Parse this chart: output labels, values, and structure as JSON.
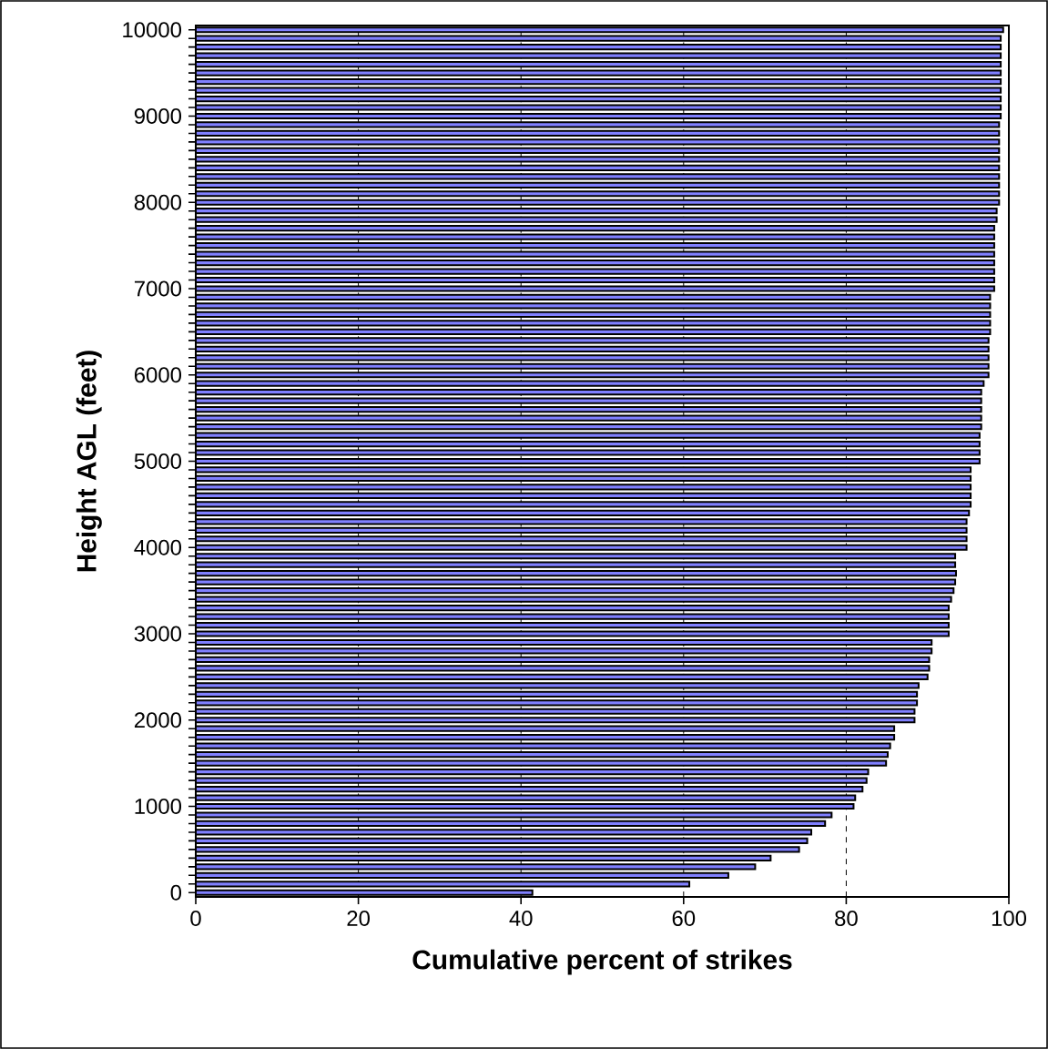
{
  "chart_data": {
    "type": "bar",
    "orientation": "horizontal",
    "xlabel": "Cumulative percent of strikes",
    "ylabel": "Height AGL (feet)",
    "x": [
      0,
      100,
      200,
      300,
      400,
      500,
      600,
      700,
      800,
      900,
      1000,
      1100,
      1200,
      1300,
      1400,
      1500,
      1600,
      1700,
      1800,
      1900,
      2000,
      2100,
      2200,
      2300,
      2400,
      2500,
      2600,
      2700,
      2800,
      2900,
      3000,
      3100,
      3200,
      3300,
      3400,
      3500,
      3600,
      3700,
      3800,
      3900,
      4000,
      4100,
      4200,
      4300,
      4400,
      4500,
      4600,
      4700,
      4800,
      4900,
      5000,
      5100,
      5200,
      5300,
      5400,
      5500,
      5600,
      5700,
      5800,
      5900,
      6000,
      6100,
      6200,
      6300,
      6400,
      6500,
      6600,
      6700,
      6800,
      6900,
      7000,
      7100,
      7200,
      7300,
      7400,
      7500,
      7600,
      7700,
      7800,
      7900,
      8000,
      8100,
      8200,
      8300,
      8400,
      8500,
      8600,
      8700,
      8800,
      8900,
      9000,
      9100,
      9200,
      9300,
      9400,
      9500,
      9600,
      9700,
      9800,
      9900,
      10000
    ],
    "values": [
      41.4,
      60.7,
      65.5,
      68.8,
      70.7,
      74.2,
      75.2,
      75.7,
      77.4,
      78.2,
      80.9,
      81.1,
      82.0,
      82.5,
      82.7,
      84.9,
      85.1,
      85.4,
      85.9,
      85.9,
      88.4,
      88.4,
      88.7,
      88.7,
      88.9,
      90.0,
      90.2,
      90.2,
      90.5,
      90.5,
      92.6,
      92.6,
      92.6,
      92.6,
      92.9,
      93.2,
      93.4,
      93.5,
      93.4,
      93.4,
      94.8,
      94.8,
      94.8,
      94.8,
      95.1,
      95.3,
      95.3,
      95.3,
      95.3,
      95.3,
      96.4,
      96.4,
      96.4,
      96.4,
      96.6,
      96.6,
      96.6,
      96.6,
      96.6,
      96.9,
      97.5,
      97.5,
      97.5,
      97.5,
      97.5,
      97.7,
      97.7,
      97.7,
      97.7,
      97.7,
      98.2,
      98.2,
      98.2,
      98.2,
      98.2,
      98.2,
      98.2,
      98.2,
      98.5,
      98.5,
      98.8,
      98.8,
      98.8,
      98.8,
      98.8,
      98.8,
      98.8,
      98.8,
      98.8,
      98.8,
      99.0,
      99.0,
      99.0,
      99.0,
      99.0,
      99.0,
      99.0,
      99.0,
      99.0,
      99.0,
      99.3
    ],
    "color": "#8080ff",
    "xlim": [
      0,
      100
    ],
    "xticks": [
      0,
      20,
      40,
      60,
      80,
      100
    ],
    "ylim": [
      -50,
      10050
    ],
    "yticks": [
      0,
      {
        "value": 100,
        "label": null
      },
      {
        "value": 200,
        "label": null
      },
      {
        "value": 300,
        "label": null
      },
      {
        "value": 400,
        "label": null
      },
      {
        "value": 500,
        "label": null
      },
      {
        "value": 600,
        "label": null
      },
      {
        "value": 700,
        "label": null
      },
      {
        "value": 800,
        "label": null
      },
      {
        "value": 900,
        "label": null
      },
      1000,
      {
        "value": 1100,
        "label": null
      },
      {
        "value": 1200,
        "label": null
      },
      {
        "value": 1300,
        "label": null
      },
      {
        "value": 1400,
        "label": null
      },
      {
        "value": 1500,
        "label": null
      },
      {
        "value": 1600,
        "label": null
      },
      {
        "value": 1700,
        "label": null
      },
      {
        "value": 1800,
        "label": null
      },
      {
        "value": 1900,
        "label": null
      },
      2000,
      {
        "value": 2100,
        "label": null
      },
      {
        "value": 2200,
        "label": null
      },
      {
        "value": 2300,
        "label": null
      },
      {
        "value": 2400,
        "label": null
      },
      {
        "value": 2500,
        "label": null
      },
      {
        "value": 2600,
        "label": null
      },
      {
        "value": 2700,
        "label": null
      },
      {
        "value": 2800,
        "label": null
      },
      {
        "value": 2900,
        "label": null
      },
      3000,
      {
        "value": 3100,
        "label": null
      },
      {
        "value": 3200,
        "label": null
      },
      {
        "value": 3300,
        "label": null
      },
      {
        "value": 3400,
        "label": null
      },
      {
        "value": 3500,
        "label": null
      },
      {
        "value": 3600,
        "label": null
      },
      {
        "value": 3700,
        "label": null
      },
      {
        "value": 3800,
        "label": null
      },
      {
        "value": 3900,
        "label": null
      },
      4000,
      {
        "value": 4100,
        "label": null
      },
      {
        "value": 4200,
        "label": null
      },
      {
        "value": 4300,
        "label": null
      },
      {
        "value": 4400,
        "label": null
      },
      {
        "value": 4500,
        "label": null
      },
      {
        "value": 4600,
        "label": null
      },
      {
        "value": 4700,
        "label": null
      },
      {
        "value": 4800,
        "label": null
      },
      {
        "value": 4900,
        "label": null
      },
      5000,
      {
        "value": 5100,
        "label": null
      },
      {
        "value": 5200,
        "label": null
      },
      {
        "value": 5300,
        "label": null
      },
      {
        "value": 5400,
        "label": null
      },
      {
        "value": 5500,
        "label": null
      },
      {
        "value": 5600,
        "label": null
      },
      {
        "value": 5700,
        "label": null
      },
      {
        "value": 5800,
        "label": null
      },
      {
        "value": 5900,
        "label": null
      },
      6000,
      {
        "value": 6100,
        "label": null
      },
      {
        "value": 6200,
        "label": null
      },
      {
        "value": 6300,
        "label": null
      },
      {
        "value": 6400,
        "label": null
      },
      {
        "value": 6500,
        "label": null
      },
      {
        "value": 6600,
        "label": null
      },
      {
        "value": 6700,
        "label": null
      },
      {
        "value": 6800,
        "label": null
      },
      {
        "value": 6900,
        "label": null
      },
      7000,
      {
        "value": 7100,
        "label": null
      },
      {
        "value": 7200,
        "label": null
      },
      {
        "value": 7300,
        "label": null
      },
      {
        "value": 7400,
        "label": null
      },
      {
        "value": 7500,
        "label": null
      },
      {
        "value": 7600,
        "label": null
      },
      {
        "value": 7700,
        "label": null
      },
      {
        "value": 7800,
        "label": null
      },
      {
        "value": 7900,
        "label": null
      },
      8000,
      {
        "value": 8100,
        "label": null
      },
      {
        "value": 8200,
        "label": null
      },
      {
        "value": 8300,
        "label": null
      },
      {
        "value": 8400,
        "label": null
      },
      {
        "value": 8500,
        "label": null
      },
      {
        "value": 8600,
        "label": null
      },
      {
        "value": 8700,
        "label": null
      },
      {
        "value": 8800,
        "label": null
      },
      {
        "value": 8900,
        "label": null
      },
      9000,
      {
        "value": 9100,
        "label": null
      },
      {
        "value": 9200,
        "label": null
      },
      {
        "value": 9300,
        "label": null
      },
      {
        "value": 9400,
        "label": null
      },
      {
        "value": 9500,
        "label": null
      },
      {
        "value": 9600,
        "label": null
      },
      {
        "value": 9700,
        "label": null
      },
      {
        "value": 9800,
        "label": null
      },
      {
        "value": 9900,
        "label": null
      },
      10000
    ],
    "grid": "x"
  }
}
